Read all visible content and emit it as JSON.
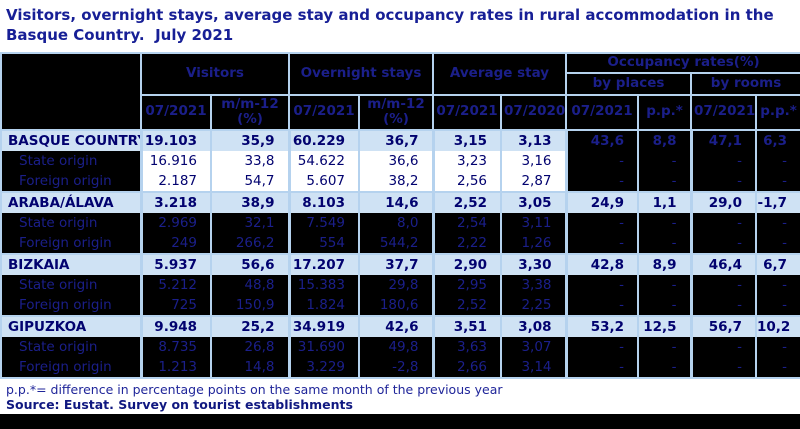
{
  "title": "Visitors, overnight stays, average stay and occupancy rates in rural accommodation in the Basque Country.  July 2021",
  "header": {
    "visitors": "Visitors",
    "overnight": "Overnight stays",
    "avg_stay": "Average stay",
    "occupancy": "Occupancy rates(%)",
    "by_places": "by places",
    "by_rooms": "by rooms",
    "c1": "07/2021",
    "c2": "m/m-12 (%)",
    "c3": "07/2021",
    "c4": "m/m-12 (%)",
    "c5": "07/2021",
    "c6": "07/2020",
    "c7": "07/2021",
    "c8": "p.p.*",
    "c9": "07/2021",
    "c10": "p.p.*"
  },
  "table": {
    "rows": [
      {
        "label": "BASQUE COUNTRY",
        "bold": true,
        "section": true,
        "indent": false,
        "style": {
          "label": "blue",
          "main": "blue",
          "occ": "black"
        },
        "values": [
          "19.103",
          "35,9",
          "60.229",
          "36,7",
          "3,15",
          "3,13",
          "43,6",
          "8,8",
          "47,1",
          "6,3"
        ]
      },
      {
        "label": "State origin",
        "bold": false,
        "section": false,
        "indent": true,
        "style": {
          "label": "black",
          "main": "white",
          "occ": "black"
        },
        "values": [
          "16.916",
          "33,8",
          "54.622",
          "36,6",
          "3,23",
          "3,16",
          "-",
          "-",
          "-",
          "-"
        ]
      },
      {
        "label": "Foreign origin",
        "bold": false,
        "section": false,
        "indent": true,
        "style": {
          "label": "black",
          "main": "white",
          "occ": "black"
        },
        "values": [
          "2.187",
          "54,7",
          "5.607",
          "38,2",
          "2,56",
          "2,87",
          "-",
          "-",
          "-",
          "-"
        ]
      },
      {
        "label": "ARABA/ÁLAVA",
        "bold": true,
        "section": true,
        "indent": false,
        "style": {
          "label": "blue",
          "main": "blue",
          "occ": "blue"
        },
        "values": [
          "3.218",
          "38,9",
          "8.103",
          "14,6",
          "2,52",
          "3,05",
          "24,9",
          "1,1",
          "29,0",
          "-1,7"
        ]
      },
      {
        "label": "State origin",
        "bold": false,
        "section": false,
        "indent": true,
        "style": {
          "label": "black",
          "main": "black",
          "occ": "black"
        },
        "values": [
          "2.969",
          "32,1",
          "7.549",
          "8,0",
          "2,54",
          "3,11",
          "-",
          "-",
          "-",
          "-"
        ]
      },
      {
        "label": "Foreign origin",
        "bold": false,
        "section": false,
        "indent": true,
        "style": {
          "label": "black",
          "main": "black",
          "occ": "black"
        },
        "values": [
          "249",
          "266,2",
          "554",
          "544,2",
          "2,22",
          "1,26",
          "-",
          "-",
          "-",
          "-"
        ]
      },
      {
        "label": "BIZKAIA",
        "bold": true,
        "section": true,
        "indent": false,
        "style": {
          "label": "blue",
          "main": "blue",
          "occ": "blue"
        },
        "values": [
          "5.937",
          "56,6",
          "17.207",
          "37,7",
          "2,90",
          "3,30",
          "42,8",
          "8,9",
          "46,4",
          "6,7"
        ]
      },
      {
        "label": "State origin",
        "bold": false,
        "section": false,
        "indent": true,
        "style": {
          "label": "black",
          "main": "black",
          "occ": "black"
        },
        "values": [
          "5.212",
          "48,8",
          "15.383",
          "29,8",
          "2,95",
          "3,38",
          "-",
          "-",
          "-",
          "-"
        ]
      },
      {
        "label": "Foreign origin",
        "bold": false,
        "section": false,
        "indent": true,
        "style": {
          "label": "black",
          "main": "black",
          "occ": "black"
        },
        "values": [
          "725",
          "150,9",
          "1.824",
          "180,6",
          "2,52",
          "2,25",
          "-",
          "-",
          "-",
          "-"
        ]
      },
      {
        "label": "GIPUZKOA",
        "bold": true,
        "section": true,
        "indent": false,
        "style": {
          "label": "blue",
          "main": "blue",
          "occ": "blue"
        },
        "values": [
          "9.948",
          "25,2",
          "34.919",
          "42,6",
          "3,51",
          "3,08",
          "53,2",
          "12,5",
          "56,7",
          "10,2"
        ]
      },
      {
        "label": "State origin",
        "bold": false,
        "section": false,
        "indent": true,
        "style": {
          "label": "black",
          "main": "black",
          "occ": "black"
        },
        "values": [
          "8.735",
          "26,8",
          "31.690",
          "49,8",
          "3,63",
          "3,07",
          "-",
          "-",
          "-",
          "-"
        ]
      },
      {
        "label": "Foreign origin",
        "bold": false,
        "section": false,
        "indent": true,
        "style": {
          "label": "black",
          "main": "black",
          "occ": "black"
        },
        "values": [
          "1.213",
          "14,8",
          "3.229",
          "-2,8",
          "2,66",
          "3,14",
          "-",
          "-",
          "-",
          "-"
        ]
      }
    ]
  },
  "footnotes": {
    "pp_note": "p.p.*= difference in percentage points on the same month of the previous year",
    "source": "Source: Eustat. Survey on tourist establishments"
  },
  "colors": {
    "navy_text": "#02026f",
    "navy_on_black": "#1b1f8a",
    "title_navy": "#171f96",
    "row_highlight_blue": "#cfe2f4",
    "grid_border_blue": "#b5d2ee",
    "cell_black": "#000000",
    "page_background": "#ffffff"
  }
}
